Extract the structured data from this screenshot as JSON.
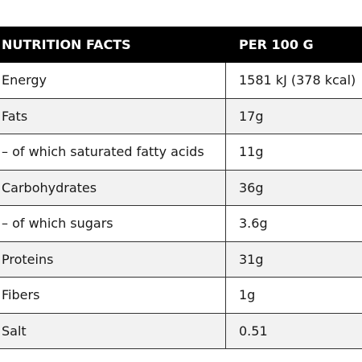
{
  "table": {
    "header": [
      "NUTRITION FACTS",
      "PER 100 G"
    ],
    "rows": [
      [
        "Energy",
        "1581 kJ (378 kcal)"
      ],
      [
        "Fats",
        "17g"
      ],
      [
        "– of which saturated fatty acids",
        "11g"
      ],
      [
        "Carbohydrates",
        "36g"
      ],
      [
        "– of which sugars",
        "3.6g"
      ],
      [
        "Proteins",
        "31g"
      ],
      [
        "Fibers",
        "1g"
      ],
      [
        "Salt",
        "0.51"
      ]
    ]
  }
}
